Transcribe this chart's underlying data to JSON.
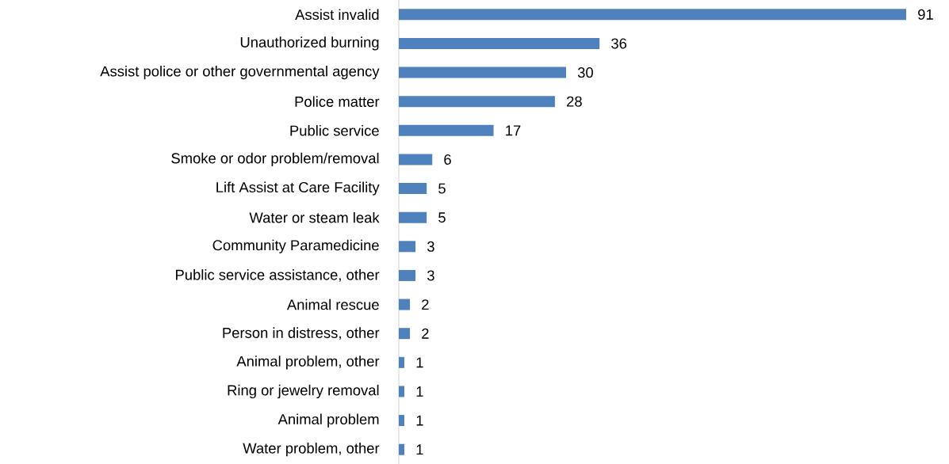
{
  "chart_data": {
    "type": "bar",
    "orientation": "horizontal",
    "data_labels": true,
    "color": "#4f81bd",
    "categories": [
      "Assist invalid",
      "Unauthorized burning",
      "Assist police or other governmental agency",
      "Police matter",
      "Public service",
      "Smoke or odor problem/removal",
      "Lift Assist at Care Facility",
      "Water or steam leak",
      "Community Paramedicine",
      "Public service assistance, other",
      "Animal rescue",
      "Person in distress, other",
      "Animal problem, other",
      "Ring or jewelry removal",
      "Animal problem",
      "Water problem, other"
    ],
    "values": [
      91,
      36,
      30,
      28,
      17,
      6,
      5,
      5,
      3,
      3,
      2,
      2,
      1,
      1,
      1,
      1
    ]
  }
}
